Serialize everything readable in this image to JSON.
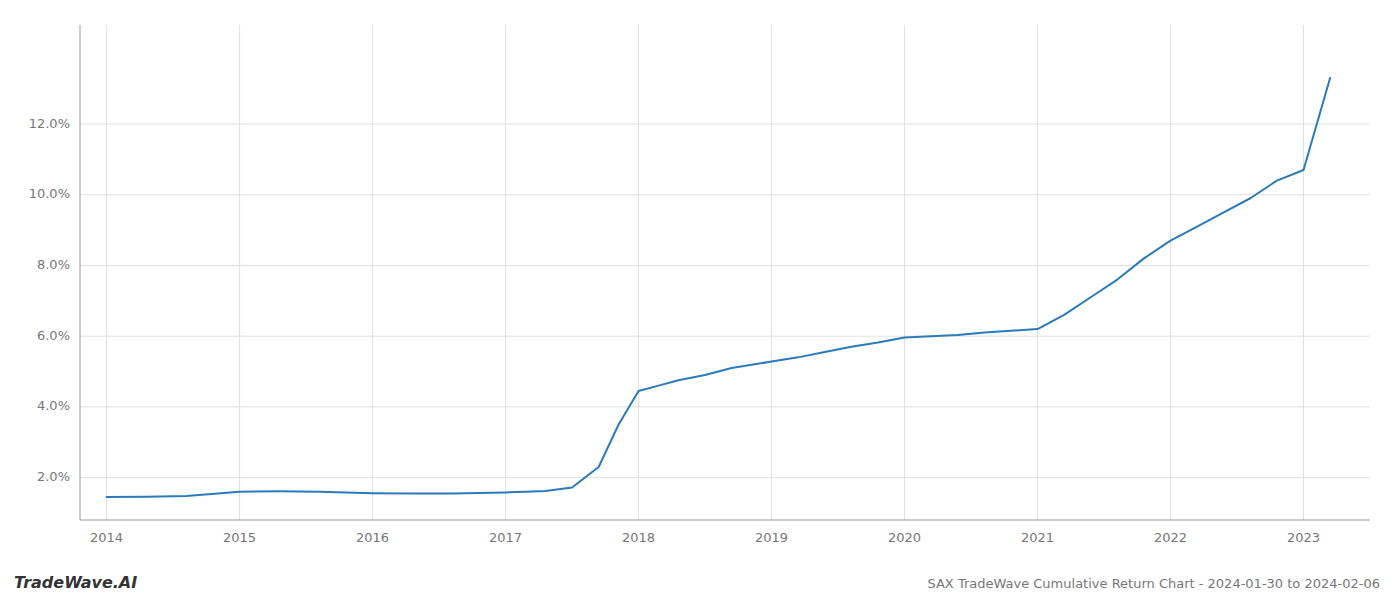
{
  "chart_data": {
    "type": "line",
    "title": "SAX TradeWave Cumulative Return Chart - 2024-01-30 to 2024-02-06",
    "annotations": [
      "TradeWave.AI"
    ],
    "x": [
      2014.0,
      2014.3,
      2014.6,
      2015.0,
      2015.3,
      2015.6,
      2016.0,
      2016.3,
      2016.6,
      2017.0,
      2017.15,
      2017.3,
      2017.5,
      2017.7,
      2017.85,
      2018.0,
      2018.15,
      2018.3,
      2018.5,
      2018.7,
      2019.0,
      2019.2,
      2019.4,
      2019.6,
      2019.8,
      2020.0,
      2020.2,
      2020.4,
      2020.6,
      2020.8,
      2021.0,
      2021.2,
      2021.4,
      2021.6,
      2021.8,
      2022.0,
      2022.2,
      2022.4,
      2022.6,
      2022.8,
      2023.0,
      2023.2
    ],
    "values": [
      1.45,
      1.46,
      1.48,
      1.6,
      1.61,
      1.6,
      1.56,
      1.55,
      1.55,
      1.58,
      1.6,
      1.62,
      1.72,
      2.3,
      3.5,
      4.45,
      4.6,
      4.75,
      4.9,
      5.1,
      5.28,
      5.4,
      5.55,
      5.7,
      5.82,
      5.96,
      6.0,
      6.03,
      6.1,
      6.15,
      6.2,
      6.6,
      7.1,
      7.6,
      8.2,
      8.7,
      9.1,
      9.5,
      9.9,
      10.4,
      10.7,
      13.3
    ],
    "color": "#2b7bba",
    "xlim": [
      2013.8,
      2023.5
    ],
    "ylim": [
      0.8,
      14.8
    ],
    "xticks": [
      2014,
      2015,
      2016,
      2017,
      2018,
      2019,
      2020,
      2021,
      2022,
      2023
    ],
    "yticks": [
      {
        "value": 2.0,
        "label": "2.0%"
      },
      {
        "value": 4.0,
        "label": "4.0%"
      },
      {
        "value": 6.0,
        "label": "6.0%"
      },
      {
        "value": 8.0,
        "label": "8.0%"
      },
      {
        "value": 10.0,
        "label": "10.0%"
      },
      {
        "value": 12.0,
        "label": "12.0%"
      }
    ],
    "grid": true
  }
}
